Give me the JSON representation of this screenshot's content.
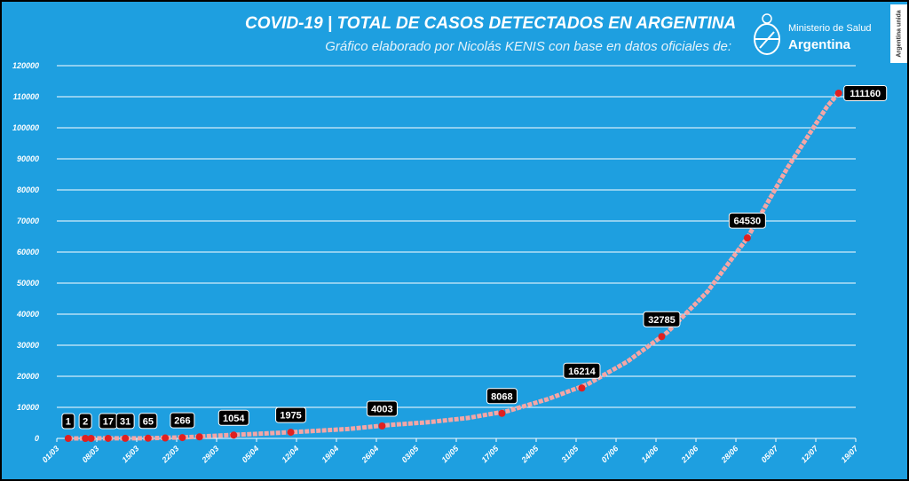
{
  "header": {
    "title": "COVID-19  |  TOTAL DE CASOS DETECTADOS EN ARGENTINA",
    "subtitle": "Gráfico elaborado por Nicolás KENIS con base en datos oficiales de:",
    "ministry_line1": "Ministerio de Salud",
    "ministry_line2": "Argentina",
    "badge": "Argentina unida"
  },
  "chart_data": {
    "type": "line",
    "title": "COVID-19  |  TOTAL DE CASOS DETECTADOS EN ARGENTINA",
    "subtitle": "Gráfico elaborado por Nicolás KENIS con base en datos oficiales de:",
    "x_start": "2020-03-01",
    "x_tick_labels": [
      "01/03",
      "08/03",
      "15/03",
      "22/03",
      "29/03",
      "05/04",
      "12/04",
      "19/04",
      "26/04",
      "03/05",
      "10/05",
      "17/05",
      "24/05",
      "31/05",
      "07/06",
      "14/06",
      "21/06",
      "28/06",
      "05/07",
      "12/07",
      "19/07"
    ],
    "ylim": [
      0,
      120000
    ],
    "y_ticks": [
      0,
      10000,
      20000,
      30000,
      40000,
      50000,
      60000,
      70000,
      80000,
      90000,
      100000,
      110000,
      120000
    ],
    "grid": "horizontal",
    "legend": "none",
    "colors": {
      "background": "#1e9fe0",
      "line": "#f4a6a6",
      "marker": "#e02020",
      "label_bg": "#000000",
      "label_text": "#ffffff",
      "grid": "#ffffff"
    },
    "series": [
      {
        "values": [
          {
            "date": "2020-03-03",
            "value": 1
          },
          {
            "date": "2020-03-10",
            "value": 17
          },
          {
            "date": "2020-03-17",
            "value": 65
          },
          {
            "date": "2020-03-24",
            "value": 387
          },
          {
            "date": "2020-03-31",
            "value": 1054
          },
          {
            "date": "2020-04-07",
            "value": 1628
          },
          {
            "date": "2020-04-14",
            "value": 2272
          },
          {
            "date": "2020-04-21",
            "value": 3031
          },
          {
            "date": "2020-04-28",
            "value": 4285
          },
          {
            "date": "2020-05-05",
            "value": 5208
          },
          {
            "date": "2020-05-12",
            "value": 6563
          },
          {
            "date": "2020-05-19",
            "value": 8809
          },
          {
            "date": "2020-05-26",
            "value": 12628
          },
          {
            "date": "2020-06-02",
            "value": 17415
          },
          {
            "date": "2020-06-09",
            "value": 24761
          },
          {
            "date": "2020-06-16",
            "value": 34159
          },
          {
            "date": "2020-06-23",
            "value": 47216
          },
          {
            "date": "2020-06-30",
            "value": 64530
          },
          {
            "date": "2020-07-07",
            "value": 87030
          },
          {
            "date": "2020-07-14",
            "value": 106910
          },
          {
            "date": "2020-07-16",
            "value": 111160
          }
        ]
      }
    ],
    "markers": [
      {
        "date": "2020-03-03",
        "value": 1
      },
      {
        "date": "2020-03-06",
        "value": 2
      },
      {
        "date": "2020-03-07",
        "value": 2
      },
      {
        "date": "2020-03-10",
        "value": 17
      },
      {
        "date": "2020-03-13",
        "value": 31
      },
      {
        "date": "2020-03-17",
        "value": 65
      },
      {
        "date": "2020-03-20",
        "value": 128
      },
      {
        "date": "2020-03-23",
        "value": 266
      },
      {
        "date": "2020-03-26",
        "value": 502
      },
      {
        "date": "2020-04-01",
        "value": 1054
      },
      {
        "date": "2020-04-11",
        "value": 1975
      },
      {
        "date": "2020-04-27",
        "value": 4003
      },
      {
        "date": "2020-05-18",
        "value": 8068
      },
      {
        "date": "2020-06-01",
        "value": 16214
      },
      {
        "date": "2020-06-15",
        "value": 32785
      },
      {
        "date": "2020-06-30",
        "value": 64530
      },
      {
        "date": "2020-07-16",
        "value": 111160
      }
    ],
    "annotations": [
      {
        "date": "2020-03-03",
        "value": 1,
        "label": "1"
      },
      {
        "date": "2020-03-06",
        "value": 2,
        "label": "2"
      },
      {
        "date": "2020-03-10",
        "value": 17,
        "label": "17"
      },
      {
        "date": "2020-03-13",
        "value": 31,
        "label": "31"
      },
      {
        "date": "2020-03-17",
        "value": 65,
        "label": "65"
      },
      {
        "date": "2020-03-23",
        "value": 266,
        "label": "266"
      },
      {
        "date": "2020-04-01",
        "value": 1054,
        "label": "1054"
      },
      {
        "date": "2020-04-11",
        "value": 1975,
        "label": "1975"
      },
      {
        "date": "2020-04-27",
        "value": 4003,
        "label": "4003"
      },
      {
        "date": "2020-05-18",
        "value": 8068,
        "label": "8068"
      },
      {
        "date": "2020-06-01",
        "value": 16214,
        "label": "16214"
      },
      {
        "date": "2020-06-15",
        "value": 32785,
        "label": "32785"
      },
      {
        "date": "2020-06-30",
        "value": 64530,
        "label": "64530"
      },
      {
        "date": "2020-07-16",
        "value": 111160,
        "label": "111160"
      }
    ]
  }
}
